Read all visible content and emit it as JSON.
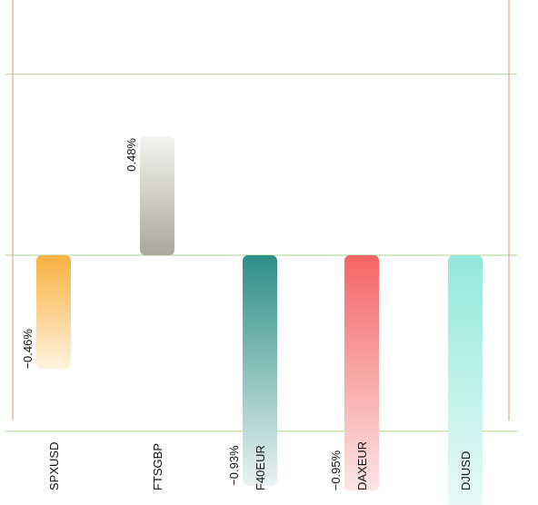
{
  "chart_data": {
    "type": "bar",
    "categories": [
      "SPXUSD",
      "FTSGBP",
      "F40EUR",
      "DAXEUR",
      "DJUSD"
    ],
    "values": [
      -0.46,
      0.48,
      -0.93,
      -0.95,
      -1.05
    ],
    "value_labels": [
      "−0.46%",
      "0.48%",
      "−0.93%",
      "−0.95%",
      ""
    ],
    "ylim": [
      -1.05,
      1.48
    ],
    "gridlines": [
      -0.71,
      0,
      0.73
    ],
    "grid": true,
    "title": "",
    "xlabel": "",
    "ylabel": ""
  },
  "colors": {
    "gridline": "#b9dba6",
    "frame": "#e8a296",
    "bars": [
      [
        "#f9b13f",
        "#fff3df"
      ],
      [
        "#aaa89a",
        "#f4f4f1"
      ],
      [
        "#2e8f88",
        "#e9f3f2"
      ],
      [
        "#f56565",
        "#fde5e5"
      ],
      [
        "#92e8dd",
        "#ecfbf9"
      ]
    ]
  }
}
